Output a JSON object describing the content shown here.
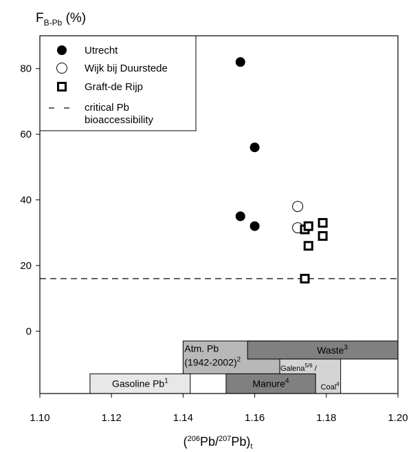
{
  "chart_data": {
    "type": "scatter",
    "ylabel_main": "F",
    "ylabel_sub": "B-Pb",
    "ylabel_unit": " (%)",
    "xlabel": {
      "open": "(",
      "sup1": "206",
      "mid": "Pb/",
      "sup2": "207",
      "close": "Pb)",
      "sub": "t"
    },
    "xlim": [
      1.1,
      1.2
    ],
    "ylim": [
      -19,
      90
    ],
    "x_ticks": [
      "1.10",
      "1.12",
      "1.14",
      "1.16",
      "1.18",
      "1.20"
    ],
    "y_ticks": [
      "0",
      "20",
      "40",
      "60",
      "80"
    ],
    "critical_line_y": 16,
    "legend": {
      "position": "top-left",
      "entries": [
        "Utrecht",
        "Wijk bij Duurstede",
        "Graft-de Rijp",
        "critical Pb",
        "bioaccessibility"
      ]
    },
    "series": [
      {
        "name": "Utrecht",
        "marker": "filled-circle",
        "points": [
          [
            1.156,
            82
          ],
          [
            1.16,
            56
          ],
          [
            1.156,
            35
          ],
          [
            1.16,
            32
          ]
        ]
      },
      {
        "name": "Wijk bij Duurstede",
        "marker": "open-circle",
        "points": [
          [
            1.172,
            38
          ],
          [
            1.172,
            31.5
          ]
        ]
      },
      {
        "name": "Graft-de Rijp",
        "marker": "open-square",
        "points": [
          [
            1.174,
            31
          ],
          [
            1.175,
            32
          ],
          [
            1.179,
            33
          ],
          [
            1.175,
            26
          ],
          [
            1.179,
            29
          ],
          [
            1.174,
            16
          ]
        ]
      }
    ],
    "source_ranges": [
      {
        "label": "Atm. Pb",
        "label2": "(1942-2002)",
        "sup": "2",
        "x": [
          1.14,
          1.167
        ],
        "y": [
          -13,
          -3
        ],
        "color": "#b8b8b8"
      },
      {
        "label": "Waste",
        "sup": "3",
        "x": [
          1.158,
          1.2
        ],
        "y": [
          -8.5,
          -3
        ],
        "color": "#808080"
      },
      {
        "label": "Galena",
        "sup": "5/6",
        "label_after": " /",
        "label2": "Coal",
        "sup2": "4",
        "x": [
          1.167,
          1.184
        ],
        "y": [
          -19,
          -8.5
        ],
        "color": "#d4d4d4"
      },
      {
        "label": "Gasoline Pb",
        "sup": "1",
        "x": [
          1.114,
          1.142
        ],
        "y": [
          -19,
          -13
        ],
        "color": "#e8e8e8"
      },
      {
        "label": "Manure",
        "sup": "4",
        "x": [
          1.152,
          1.177
        ],
        "y": [
          -19,
          -13
        ],
        "color": "#808080"
      }
    ]
  }
}
